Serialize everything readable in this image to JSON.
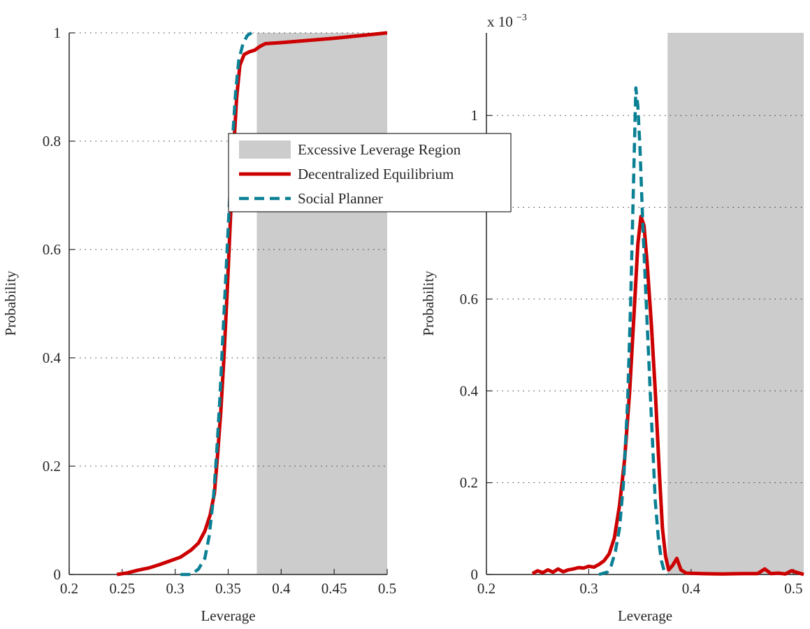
{
  "chart_data": [
    {
      "type": "line",
      "panel": "left",
      "xlabel": "Leverage",
      "ylabel": "Probability",
      "xlim": [
        0.2,
        0.5
      ],
      "ylim": [
        0,
        1
      ],
      "xticks": [
        0.2,
        0.25,
        0.3,
        0.35,
        0.4,
        0.45,
        0.5
      ],
      "xtick_labels": [
        "0.2",
        "0.25",
        "0.3",
        "0.35",
        "0.4",
        "0.45",
        "0.5"
      ],
      "yticks": [
        0,
        0.2,
        0.4,
        0.6,
        0.8,
        1
      ],
      "ytick_labels": [
        "0",
        "0.2",
        "0.4",
        "0.6",
        "0.8",
        "1"
      ],
      "grid": "horizontal-dotted",
      "shaded_region": {
        "name": "Excessive Leverage Region",
        "x": [
          0.377,
          0.5
        ],
        "color": "#cccccc"
      },
      "series": [
        {
          "name": "Decentralized Equilibrium",
          "color": "#cc0000",
          "style": "solid",
          "points": [
            [
              0.245,
              0
            ],
            [
              0.255,
              0.003
            ],
            [
              0.265,
              0.008
            ],
            [
              0.275,
              0.012
            ],
            [
              0.285,
              0.018
            ],
            [
              0.295,
              0.025
            ],
            [
              0.305,
              0.032
            ],
            [
              0.315,
              0.045
            ],
            [
              0.322,
              0.058
            ],
            [
              0.328,
              0.08
            ],
            [
              0.333,
              0.11
            ],
            [
              0.337,
              0.15
            ],
            [
              0.34,
              0.22
            ],
            [
              0.343,
              0.3
            ],
            [
              0.346,
              0.4
            ],
            [
              0.349,
              0.52
            ],
            [
              0.352,
              0.65
            ],
            [
              0.355,
              0.78
            ],
            [
              0.358,
              0.88
            ],
            [
              0.361,
              0.94
            ],
            [
              0.365,
              0.96
            ],
            [
              0.37,
              0.965
            ],
            [
              0.375,
              0.968
            ],
            [
              0.38,
              0.975
            ],
            [
              0.385,
              0.98
            ],
            [
              0.4,
              0.982
            ],
            [
              0.45,
              0.99
            ],
            [
              0.5,
              1.0
            ]
          ]
        },
        {
          "name": "Social Planner",
          "color": "#0a8094",
          "style": "dashed",
          "points": [
            [
              0.305,
              0
            ],
            [
              0.315,
              0
            ],
            [
              0.322,
              0.01
            ],
            [
              0.328,
              0.03
            ],
            [
              0.332,
              0.07
            ],
            [
              0.336,
              0.14
            ],
            [
              0.339,
              0.22
            ],
            [
              0.342,
              0.32
            ],
            [
              0.345,
              0.44
            ],
            [
              0.348,
              0.56
            ],
            [
              0.351,
              0.68
            ],
            [
              0.354,
              0.8
            ],
            [
              0.357,
              0.89
            ],
            [
              0.36,
              0.95
            ],
            [
              0.364,
              0.98
            ],
            [
              0.368,
              0.995
            ],
            [
              0.372,
              1.0
            ]
          ]
        }
      ]
    },
    {
      "type": "line",
      "panel": "right",
      "xlabel": "Leverage",
      "ylabel": "Probability",
      "scale_label": "x 10",
      "scale_exponent": "−3",
      "xlim": [
        0.2,
        0.51
      ],
      "ylim": [
        0,
        1.18
      ],
      "xticks": [
        0.2,
        0.3,
        0.4,
        0.5
      ],
      "xtick_labels": [
        "0.2",
        "0.3",
        "0.4",
        "0.5"
      ],
      "yticks": [
        0,
        0.2,
        0.4,
        0.6,
        0.8,
        1
      ],
      "ytick_labels": [
        "0",
        "0.2",
        "0.4",
        "0.6",
        "0.8",
        "1"
      ],
      "grid": "horizontal-dotted",
      "shaded_region": {
        "name": "Excessive Leverage Region",
        "x": [
          0.377,
          0.51
        ],
        "color": "#cccccc"
      },
      "series": [
        {
          "name": "Decentralized Equilibrium",
          "color": "#cc0000",
          "style": "solid",
          "points": [
            [
              0.245,
              0.002
            ],
            [
              0.25,
              0.008
            ],
            [
              0.255,
              0.004
            ],
            [
              0.26,
              0.01
            ],
            [
              0.265,
              0.005
            ],
            [
              0.27,
              0.012
            ],
            [
              0.275,
              0.006
            ],
            [
              0.28,
              0.01
            ],
            [
              0.285,
              0.012
            ],
            [
              0.29,
              0.015
            ],
            [
              0.295,
              0.014
            ],
            [
              0.3,
              0.018
            ],
            [
              0.305,
              0.016
            ],
            [
              0.31,
              0.022
            ],
            [
              0.315,
              0.03
            ],
            [
              0.32,
              0.045
            ],
            [
              0.325,
              0.08
            ],
            [
              0.33,
              0.15
            ],
            [
              0.335,
              0.25
            ],
            [
              0.34,
              0.4
            ],
            [
              0.345,
              0.6
            ],
            [
              0.348,
              0.72
            ],
            [
              0.351,
              0.78
            ],
            [
              0.354,
              0.76
            ],
            [
              0.357,
              0.68
            ],
            [
              0.361,
              0.55
            ],
            [
              0.365,
              0.4
            ],
            [
              0.369,
              0.22
            ],
            [
              0.372,
              0.1
            ],
            [
              0.375,
              0.04
            ],
            [
              0.378,
              0.01
            ],
            [
              0.382,
              0.02
            ],
            [
              0.386,
              0.035
            ],
            [
              0.39,
              0.01
            ],
            [
              0.395,
              0.003
            ],
            [
              0.41,
              0.002
            ],
            [
              0.43,
              0.001
            ],
            [
              0.45,
              0.002
            ],
            [
              0.465,
              0.002
            ],
            [
              0.472,
              0.012
            ],
            [
              0.478,
              0.002
            ],
            [
              0.485,
              0.003
            ],
            [
              0.492,
              0.001
            ],
            [
              0.498,
              0.008
            ],
            [
              0.51,
              0.0
            ]
          ]
        },
        {
          "name": "Social Planner",
          "color": "#0a8094",
          "style": "dashed",
          "points": [
            [
              0.31,
              0
            ],
            [
              0.318,
              0.005
            ],
            [
              0.322,
              0.02
            ],
            [
              0.326,
              0.05
            ],
            [
              0.33,
              0.1
            ],
            [
              0.334,
              0.2
            ],
            [
              0.338,
              0.38
            ],
            [
              0.341,
              0.6
            ],
            [
              0.344,
              0.88
            ],
            [
              0.346,
              1.06
            ],
            [
              0.348,
              1.02
            ],
            [
              0.35,
              0.93
            ],
            [
              0.353,
              0.75
            ],
            [
              0.357,
              0.55
            ],
            [
              0.361,
              0.35
            ],
            [
              0.365,
              0.16
            ],
            [
              0.368,
              0.08
            ],
            [
              0.371,
              0.03
            ],
            [
              0.374,
              0.005
            ],
            [
              0.377,
              0
            ]
          ]
        }
      ]
    }
  ],
  "legend": [
    {
      "label": "Excessive Leverage Region",
      "kind": "patch",
      "color": "#cccccc"
    },
    {
      "label": "Decentralized Equilibrium",
      "kind": "line",
      "color": "#cc0000",
      "style": "solid"
    },
    {
      "label": "Social Planner",
      "kind": "line",
      "color": "#0a8094",
      "style": "dashed"
    }
  ]
}
